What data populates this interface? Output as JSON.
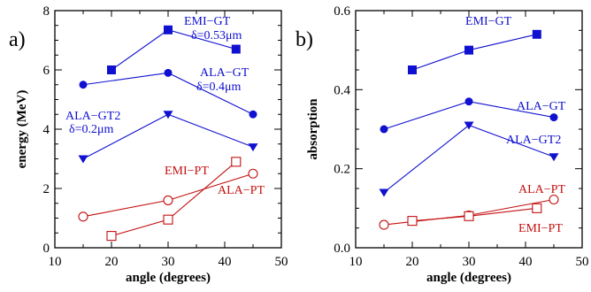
{
  "colors": {
    "blue": "#1010d0",
    "red": "#c41010",
    "black": "#000000"
  },
  "chart_data": [
    {
      "type": "line",
      "panel_label": "a)",
      "xlabel": "angle (degrees)",
      "ylabel": "energy (MeV)",
      "xlim": [
        10,
        50
      ],
      "ylim": [
        0,
        8
      ],
      "xticks": [
        10,
        20,
        30,
        40,
        50
      ],
      "yticks": [
        0,
        2,
        4,
        6,
        8
      ],
      "series": [
        {
          "name": "EMI−GT",
          "sublabel": "δ=0.53μm",
          "color": "#1010d0",
          "marker": "square-filled",
          "x": [
            20,
            30,
            42
          ],
          "y": [
            6.0,
            7.35,
            6.7
          ]
        },
        {
          "name": "ALA−GT",
          "sublabel": "δ=0.4μm",
          "color": "#1010d0",
          "marker": "circle-filled",
          "x": [
            15,
            30,
            45
          ],
          "y": [
            5.5,
            5.9,
            4.5
          ]
        },
        {
          "name": "ALA−GT2",
          "sublabel": "δ=0.2μm",
          "color": "#1010d0",
          "marker": "triangle-filled",
          "x": [
            15,
            30,
            45
          ],
          "y": [
            3.0,
            4.5,
            3.4
          ]
        },
        {
          "name": "EMI−PT",
          "sublabel": "",
          "color": "#c41010",
          "marker": "square-open",
          "x": [
            20,
            30,
            42
          ],
          "y": [
            0.4,
            0.95,
            2.9
          ]
        },
        {
          "name": "ALA−PT",
          "sublabel": "",
          "color": "#c41010",
          "marker": "circle-open",
          "x": [
            15,
            30,
            45
          ],
          "y": [
            1.05,
            1.6,
            2.5
          ]
        }
      ]
    },
    {
      "type": "line",
      "panel_label": "b)",
      "xlabel": "angle (degrees)",
      "ylabel": "absorption",
      "xlim": [
        10,
        50
      ],
      "ylim": [
        0,
        0.6
      ],
      "xticks": [
        10,
        20,
        30,
        40,
        50
      ],
      "yticks": [
        0.0,
        0.2,
        0.4,
        0.6
      ],
      "series": [
        {
          "name": "EMI−GT",
          "sublabel": "",
          "color": "#1010d0",
          "marker": "square-filled",
          "x": [
            20,
            30,
            42
          ],
          "y": [
            0.45,
            0.5,
            0.54
          ]
        },
        {
          "name": "ALA−GT",
          "sublabel": "",
          "color": "#1010d0",
          "marker": "circle-filled",
          "x": [
            15,
            30,
            45
          ],
          "y": [
            0.3,
            0.37,
            0.33
          ]
        },
        {
          "name": "ALA−GT2",
          "sublabel": "",
          "color": "#1010d0",
          "marker": "triangle-filled",
          "x": [
            15,
            30,
            45
          ],
          "y": [
            0.14,
            0.31,
            0.23
          ]
        },
        {
          "name": "ALA−PT",
          "sublabel": "",
          "color": "#c41010",
          "marker": "circle-open",
          "x": [
            15,
            30,
            45
          ],
          "y": [
            0.058,
            0.082,
            0.122
          ]
        },
        {
          "name": "EMI−PT",
          "sublabel": "",
          "color": "#c41010",
          "marker": "square-open",
          "x": [
            20,
            30,
            42
          ],
          "y": [
            0.068,
            0.08,
            0.1
          ]
        }
      ]
    }
  ]
}
